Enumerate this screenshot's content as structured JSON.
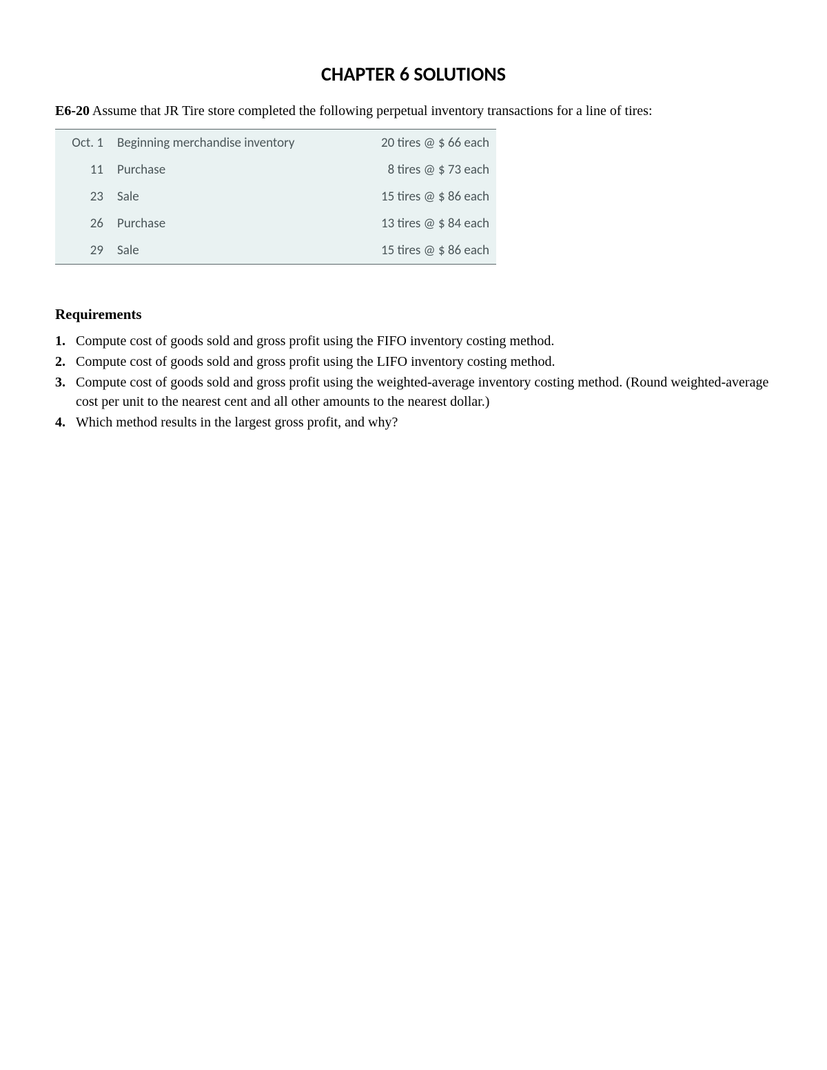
{
  "title": "CHAPTER 6 SOLUTIONS",
  "intro": {
    "label": "E6-20",
    "text": " Assume that JR Tire store completed the following perpetual inventory transactions for a line of tires:"
  },
  "table": {
    "background_color": "#e9f2f2",
    "border_color": "#5a6568",
    "text_color": "#4a5558",
    "rows": [
      {
        "date": "Oct. 1",
        "desc": "Beginning merchandise inventory",
        "detail": "20 tires @ $ 66 each"
      },
      {
        "date": "11",
        "desc": "Purchase",
        "detail": "8 tires @ $ 73 each"
      },
      {
        "date": "23",
        "desc": "Sale",
        "detail": "15 tires @ $ 86 each"
      },
      {
        "date": "26",
        "desc": "Purchase",
        "detail": "13 tires @ $ 84 each"
      },
      {
        "date": "29",
        "desc": "Sale",
        "detail": "15 tires @ $ 86 each"
      }
    ]
  },
  "requirements": {
    "heading": "Requirements",
    "items": [
      {
        "num": "1.",
        "text": "Compute cost of goods sold and gross profit using the FIFO inventory costing method."
      },
      {
        "num": "2.",
        "text": "Compute cost of goods sold and gross profit using the LIFO inventory costing method."
      },
      {
        "num": "3.",
        "text": "Compute cost of goods sold and gross profit using the weighted-average inventory costing method. (Round weighted-average cost per unit to the nearest cent and all other amounts to the nearest dollar.)"
      },
      {
        "num": "4.",
        "text": "Which method results in the largest gross profit, and why?"
      }
    ]
  }
}
